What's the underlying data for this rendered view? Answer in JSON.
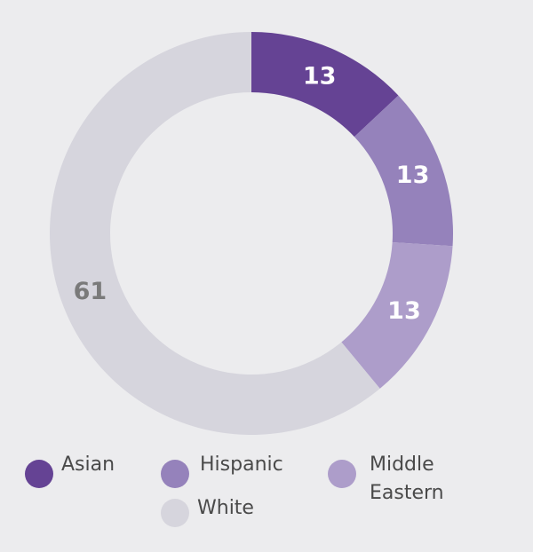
{
  "chart_data": {
    "type": "pie",
    "variant": "donut",
    "start": "12 o'clock, clockwise",
    "categories": [
      "Asian",
      "Hispanic",
      "Middle Eastern",
      "White"
    ],
    "values": [
      13,
      13,
      13,
      61
    ],
    "colors": [
      "#654394",
      "#9582bb",
      "#ad9dca",
      "#d6d5dd"
    ],
    "label_colors": [
      "#ffffff",
      "#ffffff",
      "#ffffff",
      "#7a7a7a"
    ],
    "legend_placement": "bottom"
  },
  "legend": {
    "items": [
      {
        "label": "Asian",
        "lines": [
          "Asian"
        ],
        "color": "#654394"
      },
      {
        "label": "Hispanic",
        "lines": [
          "Hispanic"
        ],
        "color": "#9582bb"
      },
      {
        "label": "Middle Eastern",
        "lines": [
          "Middle",
          "Eastern"
        ],
        "color": "#ad9dca"
      },
      {
        "label": "White",
        "lines": [
          "White"
        ],
        "color": "#d6d5dd"
      }
    ]
  }
}
